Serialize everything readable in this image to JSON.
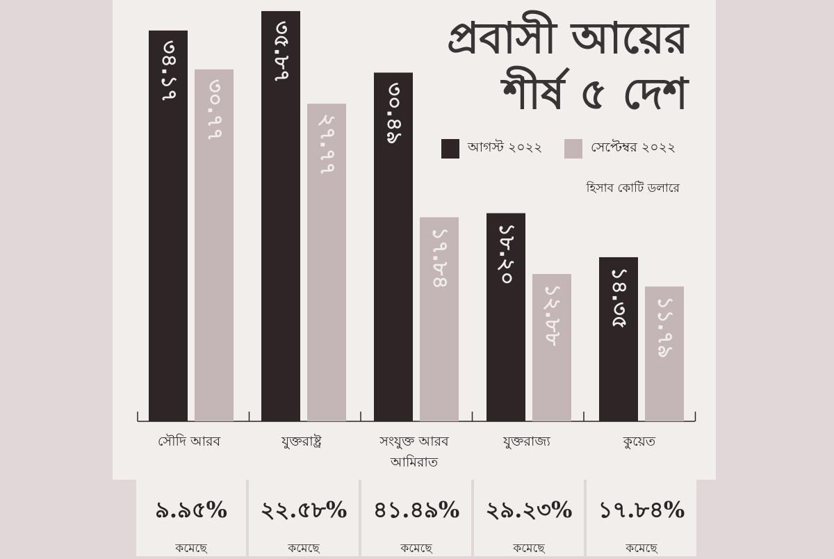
{
  "chart_data": {
    "type": "bar",
    "title": "প্রবাসী আয়ের",
    "subtitle": "শীর্ষ ৫ দেশ",
    "unit_note": "হিসাব কোটি ডলারে",
    "categories": [
      "সৌদি আরব",
      "যুক্তরাষ্ট্র",
      "সংযুক্ত আরব আমিরাত",
      "যুক্তরাজ্য",
      "কুয়েত"
    ],
    "series": [
      {
        "name": "আগস্ট ২০২২",
        "color": "#2e2526",
        "values": [
          34.17,
          35.87,
          30.49,
          18.2,
          14.35
        ],
        "labels": [
          "৩৪.১৭",
          "৩৫.৮৭",
          "৩০.৪৯",
          "১৮.২০",
          "১৪.৩৫"
        ]
      },
      {
        "name": "সেপ্টেম্বর ২০২২",
        "color": "#c4b6b6",
        "values": [
          30.77,
          27.77,
          17.84,
          12.88,
          11.79
        ],
        "labels": [
          "৩০.৭৭",
          "২৭.৭৭",
          "১৭.৮৪",
          "১২.৮৮",
          "১১.৭৯"
        ]
      }
    ],
    "ylim": [
      0,
      38
    ],
    "grid": false,
    "legend": "top-right",
    "changes": [
      {
        "percent": "৯.৯৫%",
        "label": "কমেছে"
      },
      {
        "percent": "২২.৫৮%",
        "label": "কমেছে"
      },
      {
        "percent": "৪১.৪৯%",
        "label": "কমেছে"
      },
      {
        "percent": "২৯.২৩%",
        "label": "কমেছে"
      },
      {
        "percent": "১৭.৮৪%",
        "label": "কমেছে"
      }
    ]
  }
}
